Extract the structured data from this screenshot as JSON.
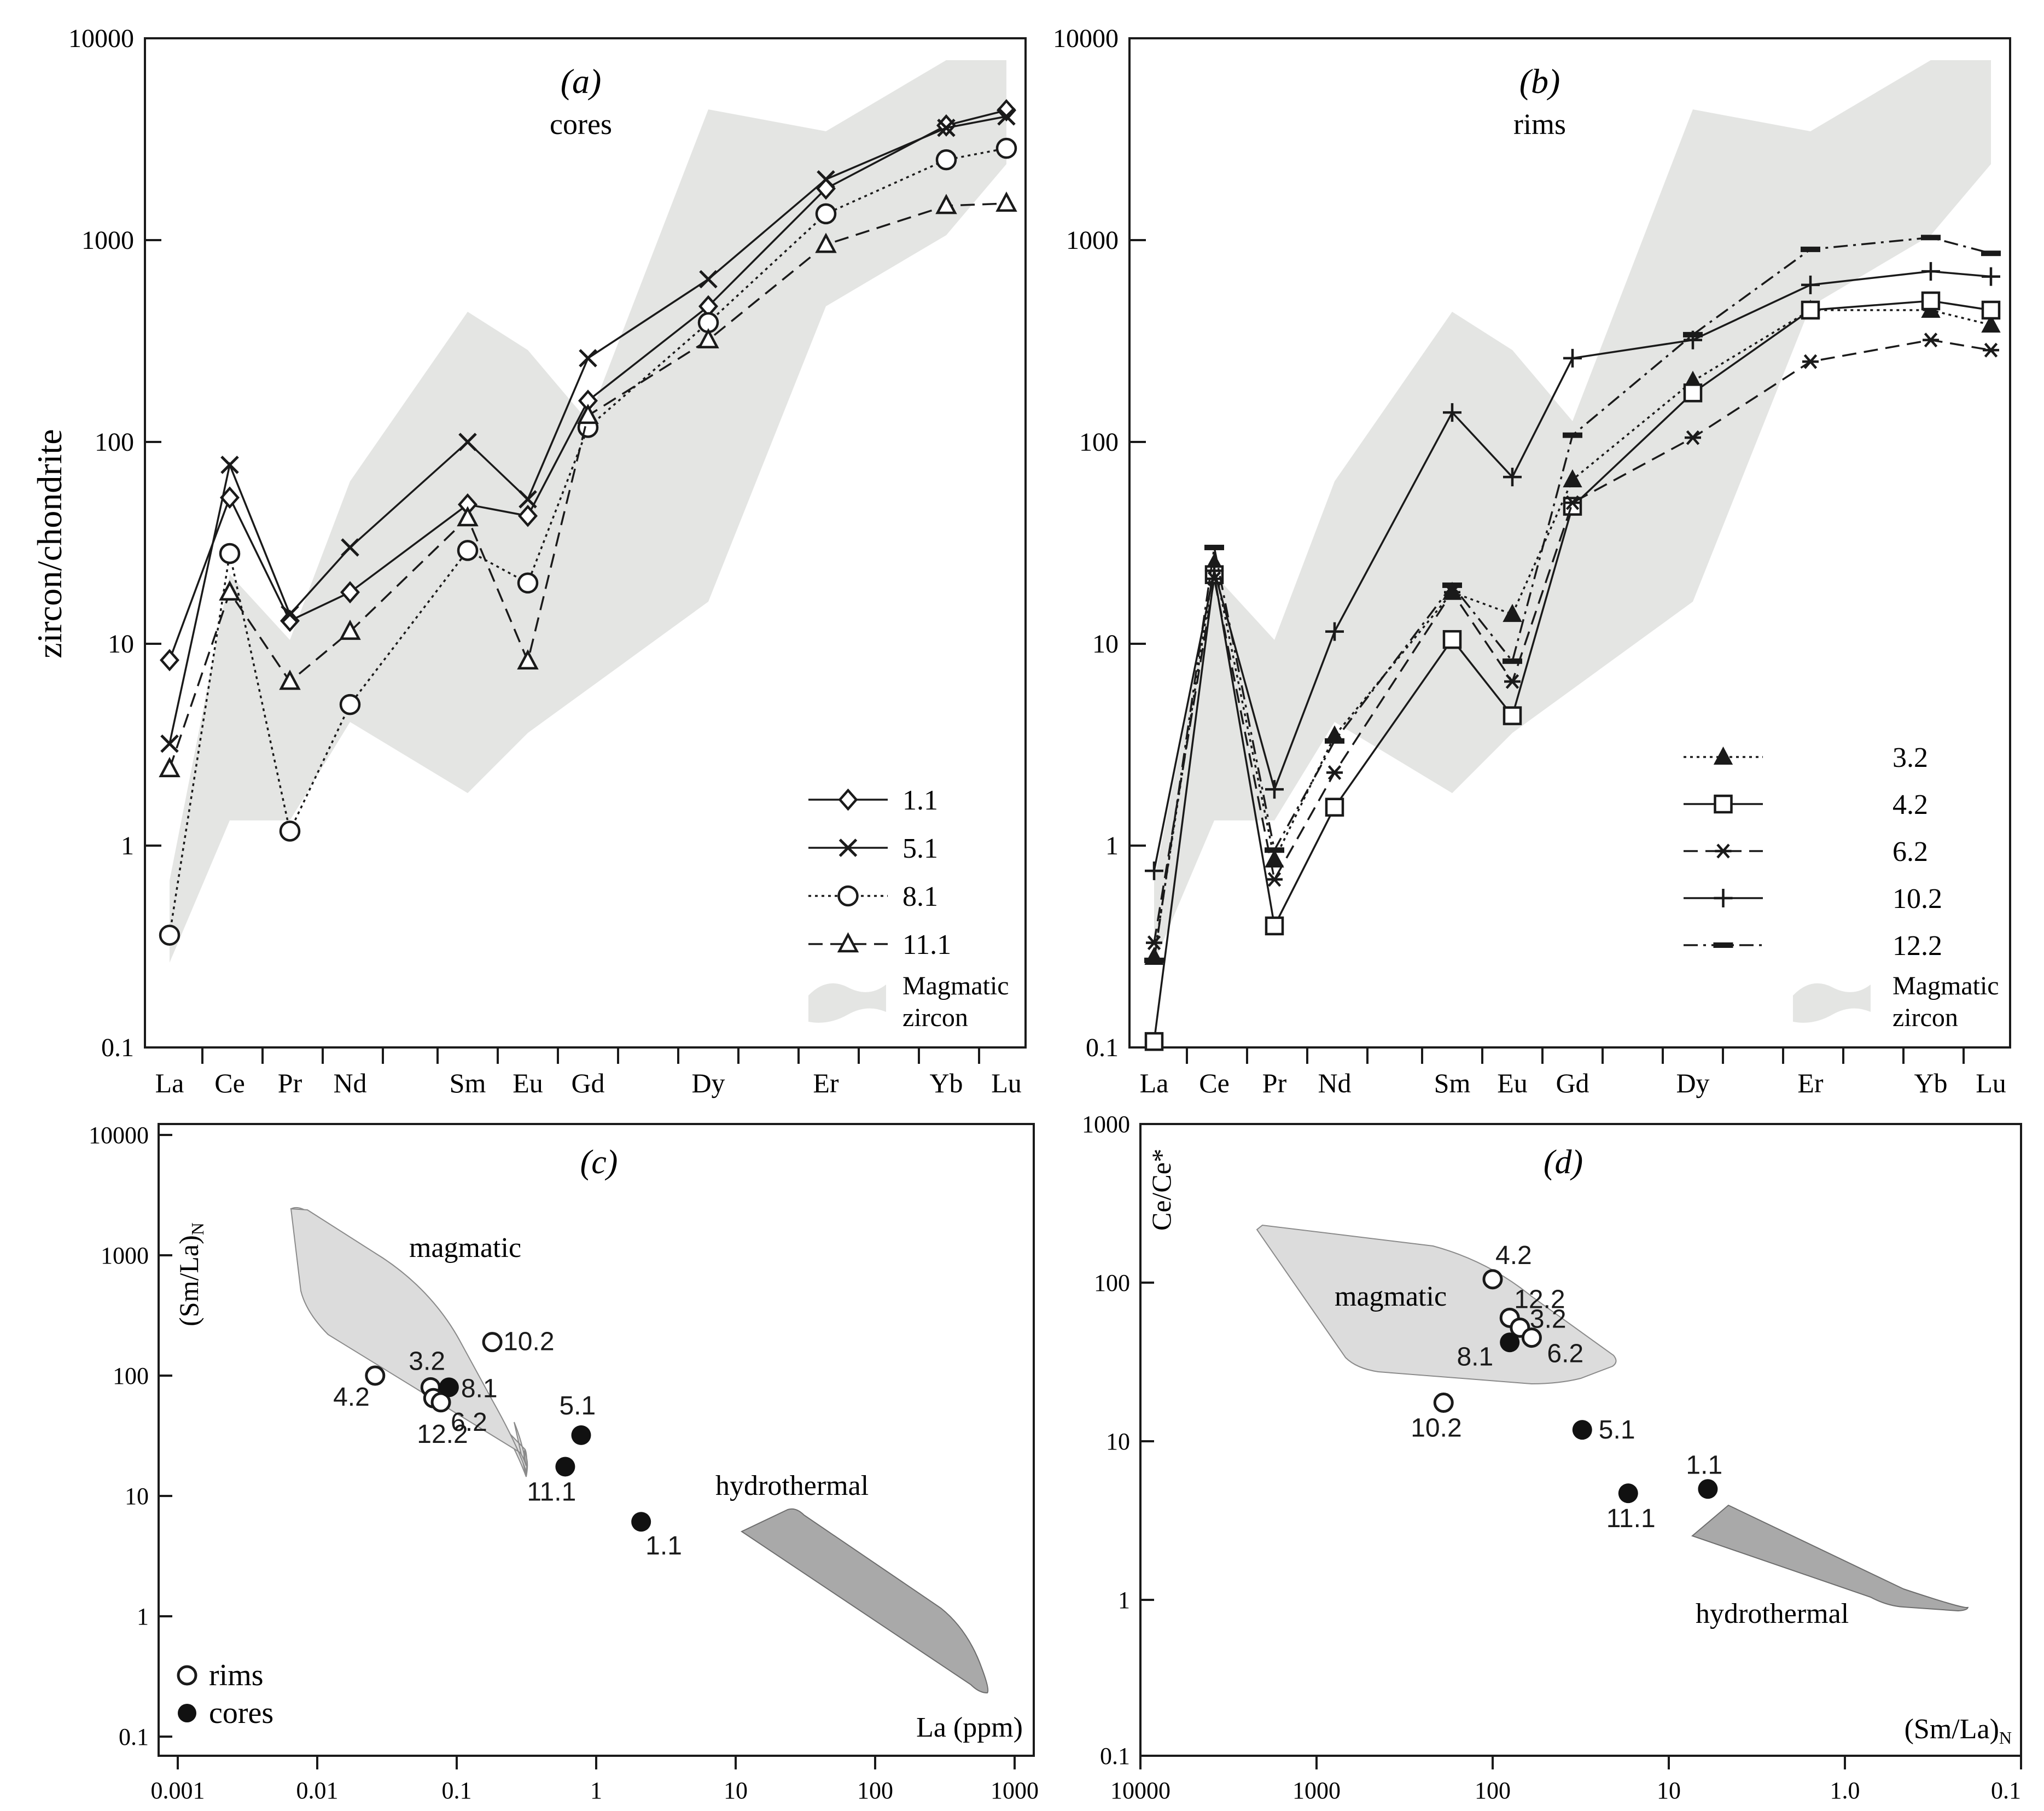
{
  "y_axis_title": "zircon/chondrite",
  "colors": {
    "magmatic_band": "#e4e5e3",
    "magmatic_field": "#dcdcdc",
    "hydrothermal_field": "#a9a9a9",
    "line": "#1a1a1a"
  },
  "chart_data": [
    {
      "type": "line",
      "id": "a",
      "title": "(a)",
      "subtitle": "cores",
      "yscale": "log",
      "ylim": [
        0.1,
        10000
      ],
      "yticks": [
        "0.1",
        "1",
        "10",
        "100",
        "1000",
        "10000"
      ],
      "categories": [
        "La",
        "Ce",
        "Pr",
        "Nd",
        "Sm",
        "Eu",
        "Gd",
        "Dy",
        "Er",
        "Yb",
        "Lu"
      ],
      "series": [
        {
          "name": "1.1",
          "marker": "diamond",
          "dash": "solid",
          "values": [
            8.3,
            53,
            13,
            18,
            49,
            43,
            160,
            470,
            1800,
            3700,
            4400
          ]
        },
        {
          "name": "5.1",
          "marker": "x",
          "dash": "solid",
          "values": [
            3.2,
            77,
            14,
            30,
            100,
            52,
            260,
            640,
            2000,
            3600,
            4100
          ]
        },
        {
          "name": "8.1",
          "marker": "circle",
          "dash": "dotted",
          "values": [
            0.36,
            28,
            1.18,
            5,
            29,
            20,
            118,
            390,
            1350,
            2500,
            2850
          ]
        },
        {
          "name": "11.1",
          "marker": "triangle",
          "dash": "dashed",
          "values": [
            2.4,
            18,
            6.5,
            11.5,
            42,
            8.2,
            135,
            320,
            950,
            1480,
            1520
          ]
        }
      ],
      "band_label_1": "Magmatic",
      "band_label_2": "zircon"
    },
    {
      "type": "line",
      "id": "b",
      "title": "(b)",
      "subtitle": "rims",
      "yscale": "log",
      "ylim": [
        0.1,
        10000
      ],
      "yticks": [
        "0.1",
        "1",
        "10",
        "100",
        "1000",
        "10000"
      ],
      "categories": [
        "La",
        "Ce",
        "Pr",
        "Nd",
        "Sm",
        "Eu",
        "Gd",
        "Dy",
        "Er",
        "Yb",
        "Lu"
      ],
      "series": [
        {
          "name": "3.2",
          "marker": "filled-triangle",
          "dash": "dotted",
          "values": [
            0.28,
            25,
            0.85,
            3.5,
            18,
            14,
            65,
            200,
            450,
            450,
            380
          ]
        },
        {
          "name": "4.2",
          "marker": "square",
          "dash": "solid",
          "values": [
            0.107,
            22,
            0.4,
            1.55,
            10.5,
            4.4,
            48,
            175,
            450,
            500,
            450
          ]
        },
        {
          "name": "6.2",
          "marker": "asterisk",
          "dash": "dashed",
          "values": [
            0.33,
            21,
            0.68,
            2.3,
            18,
            6.5,
            50,
            105,
            250,
            320,
            285
          ]
        },
        {
          "name": "10.2",
          "marker": "plus",
          "dash": "solid",
          "values": [
            0.75,
            23,
            1.9,
            11.5,
            140,
            67,
            260,
            320,
            600,
            700,
            660
          ]
        },
        {
          "name": "12.2",
          "marker": "bar",
          "dash": "dashdot",
          "values": [
            0.27,
            30,
            0.95,
            3.3,
            19.5,
            8.2,
            108,
            340,
            900,
            1030,
            860
          ]
        }
      ],
      "band_label_1": "Magmatic",
      "band_label_2": "zircon"
    },
    {
      "type": "scatter",
      "id": "c",
      "title": "(c)",
      "xscale": "log",
      "yscale": "log",
      "xlim": [
        0.0005,
        1200
      ],
      "ylim": [
        0.05,
        15000
      ],
      "xticks": [
        "0.001",
        "0.01",
        "0.1",
        "1",
        "10",
        "100",
        "1000"
      ],
      "yticks": [
        "0.1",
        "1",
        "10",
        "100",
        "1000",
        "10000"
      ],
      "xlabel": "La (ppm)",
      "ylabel_main": "(Sm/La)",
      "ylabel_sub": "N",
      "points": [
        {
          "label": "4.2",
          "group": "rims",
          "x": 0.026,
          "y": 100
        },
        {
          "label": "3.2",
          "group": "rims",
          "x": 0.065,
          "y": 80
        },
        {
          "label": "12.2",
          "group": "rims",
          "x": 0.068,
          "y": 65
        },
        {
          "label": "6.2",
          "group": "rims",
          "x": 0.077,
          "y": 60
        },
        {
          "label": "10.2",
          "group": "rims",
          "x": 0.18,
          "y": 190
        },
        {
          "label": "8.1",
          "group": "cores",
          "x": 0.088,
          "y": 80
        },
        {
          "label": "5.1",
          "group": "cores",
          "x": 0.78,
          "y": 32
        },
        {
          "label": "11.1",
          "group": "cores",
          "x": 0.6,
          "y": 17.5
        },
        {
          "label": "1.1",
          "group": "cores",
          "x": 2.1,
          "y": 6.1
        }
      ],
      "field_magmatic": "magmatic",
      "field_hydrothermal": "hydrothermal",
      "legend_rims": "rims",
      "legend_cores": "cores"
    },
    {
      "type": "scatter",
      "id": "d",
      "title": "(d)",
      "xscale": "log-reversed",
      "yscale": "log",
      "xlim": [
        10000,
        0.1
      ],
      "ylim": [
        0.1,
        1000
      ],
      "xticks": [
        "10000",
        "1000",
        "100",
        "10",
        "1.0",
        "0.1"
      ],
      "yticks": [
        "0.1",
        "1",
        "10",
        "100",
        "1000"
      ],
      "xlabel_main": "(Sm/La)",
      "xlabel_sub": "N",
      "ylabel": "Ce/Ce*",
      "points": [
        {
          "label": "4.2",
          "group": "rims",
          "x": 100,
          "y": 105
        },
        {
          "label": "12.2",
          "group": "rims",
          "x": 80,
          "y": 60
        },
        {
          "label": "3.2",
          "group": "rims",
          "x": 70,
          "y": 52
        },
        {
          "label": "6.2",
          "group": "rims",
          "x": 60,
          "y": 45
        },
        {
          "label": "10.2",
          "group": "rims",
          "x": 190,
          "y": 17.5
        },
        {
          "label": "8.1",
          "group": "cores",
          "x": 80,
          "y": 42
        },
        {
          "label": "5.1",
          "group": "cores",
          "x": 31,
          "y": 11.8
        },
        {
          "label": "11.1",
          "group": "cores",
          "x": 17,
          "y": 4.7
        },
        {
          "label": "1.1",
          "group": "cores",
          "x": 6,
          "y": 5
        }
      ],
      "field_magmatic": "magmatic",
      "field_hydrothermal": "hydrothermal"
    }
  ]
}
